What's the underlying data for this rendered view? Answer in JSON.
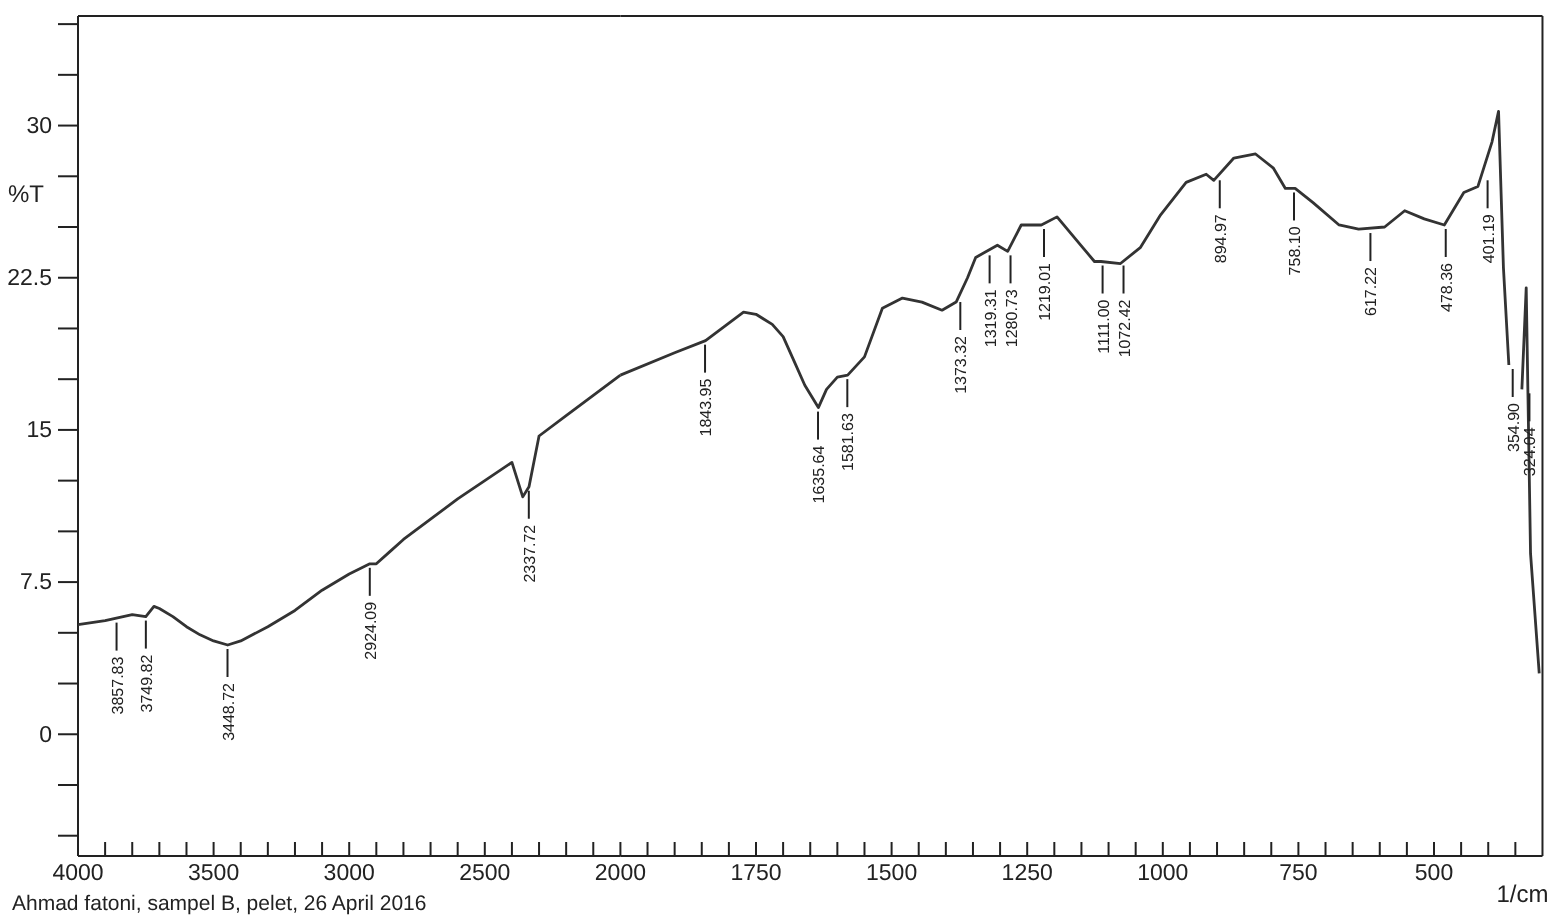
{
  "chart_data": [
    {
      "type": "line",
      "ylabel": "%T",
      "x": [
        4000,
        3900,
        3800,
        3750,
        3720,
        3700,
        3650,
        3600,
        3550,
        3500,
        3448,
        3400,
        3300,
        3200,
        3100,
        3000,
        2924,
        2900,
        2850,
        2800,
        2700,
        2600,
        2500,
        2400,
        2360,
        2337,
        2300,
        2200,
        2100,
        2000
      ],
      "series": [
        {
          "color": "#333333",
          "values": [
            5.4,
            5.6,
            5.9,
            5.8,
            6.3,
            6.2,
            5.8,
            5.3,
            4.9,
            4.6,
            4.4,
            4.6,
            5.3,
            6.1,
            7.1,
            7.9,
            8.4,
            8.4,
            9.0,
            9.6,
            10.6,
            11.6,
            12.5,
            13.4,
            11.7,
            12.2,
            14.7,
            15.7,
            16.7,
            17.7
          ]
        }
      ],
      "xlim": [
        4000,
        2000
      ],
      "xticks": [
        4000,
        {
          "value": 3900,
          "label": null
        },
        {
          "value": 3800,
          "label": null
        },
        {
          "value": 3700,
          "label": null
        },
        {
          "value": 3600,
          "label": null
        },
        3500,
        {
          "value": 3400,
          "label": null
        },
        {
          "value": 3300,
          "label": null
        },
        {
          "value": 3200,
          "label": null
        },
        {
          "value": 3100,
          "label": null
        },
        3000,
        {
          "value": 2900,
          "label": null
        },
        {
          "value": 2800,
          "label": null
        },
        {
          "value": 2700,
          "label": null
        },
        {
          "value": 2600,
          "label": null
        },
        2500,
        {
          "value": 2400,
          "label": null
        },
        {
          "value": 2300,
          "label": null
        },
        {
          "value": 2200,
          "label": null
        },
        {
          "value": 2100,
          "label": null
        },
        2000
      ],
      "ylim": [
        -6,
        35.4
      ],
      "yticks": [
        {
          "value": -5,
          "label": null
        },
        {
          "value": -2.5,
          "label": null
        },
        0,
        {
          "value": 2.5,
          "label": null
        },
        {
          "value": 5,
          "label": null
        },
        7.5,
        {
          "value": 10,
          "label": null
        },
        {
          "value": 12.5,
          "label": null
        },
        15,
        {
          "value": 17.5,
          "label": null
        },
        {
          "value": 20,
          "label": null
        },
        22.5,
        {
          "value": 25,
          "label": null
        },
        {
          "value": 27.5,
          "label": null
        },
        30,
        {
          "value": 32.5,
          "label": null
        },
        {
          "value": 35,
          "label": null
        }
      ],
      "grid": false,
      "marker": "none",
      "line_style": "solid",
      "annotations": [
        "Ahmad fatoni, sampel B,  pelet,  26 April 2016",
        {
          "text": "3857.83",
          "x": 3857.83,
          "y": 5.7
        },
        {
          "text": "3749.82",
          "x": 3749.82,
          "y": 5.8
        },
        {
          "text": "3448.72",
          "x": 3448.72,
          "y": 4.4
        },
        {
          "text": "2924.09",
          "x": 2924.09,
          "y": 8.4
        },
        {
          "text": "2337.72",
          "x": 2337.72,
          "y": 12.2
        }
      ]
    },
    {
      "type": "line",
      "xlabel": "1/cm",
      "tick_labels": "x",
      "x": [
        2000,
        1900,
        1843,
        1773,
        1750,
        1720,
        1700,
        1680,
        1660,
        1635,
        1620,
        1600,
        1581,
        1550,
        1517,
        1480,
        1444,
        1407,
        1381,
        1360,
        1345,
        1305,
        1286,
        1261,
        1224,
        1195,
        1151,
        1126,
        1114,
        1078,
        1041,
        1004,
        957,
        920,
        906,
        869,
        829,
        796,
        774,
        756,
        723,
        675,
        639,
        591,
        554,
        518,
        481,
        445,
        419,
        393,
        381,
        372,
        362,
        357,
        349,
        338,
        330,
        322,
        306
      ],
      "series": [
        {
          "color": "#333333",
          "values": [
            17.7,
            18.8,
            19.4,
            20.8,
            20.7,
            20.2,
            19.6,
            18.4,
            17.2,
            16.1,
            17.0,
            17.6,
            17.7,
            18.6,
            21.0,
            21.5,
            21.3,
            20.9,
            21.3,
            22.5,
            23.5,
            24.1,
            23.8,
            25.1,
            25.1,
            25.5,
            24.1,
            23.3,
            23.3,
            23.2,
            24.0,
            25.6,
            27.2,
            27.6,
            27.3,
            28.4,
            28.6,
            27.9,
            26.9,
            26.9,
            26.2,
            25.1,
            24.9,
            25.0,
            25.8,
            25.4,
            25.1,
            26.7,
            27.0,
            29.2,
            30.7,
            23.0,
            18.2,
            null,
            null,
            17.0,
            22.0,
            8.9,
            3.0
          ]
        }
      ],
      "xlim": [
        2000,
        300
      ],
      "xticks": [
        {
          "value": 1950,
          "label": null
        },
        {
          "value": 1900,
          "label": null
        },
        {
          "value": 1850,
          "label": null
        },
        {
          "value": 1800,
          "label": null
        },
        1750,
        {
          "value": 1700,
          "label": null
        },
        {
          "value": 1650,
          "label": null
        },
        {
          "value": 1600,
          "label": null
        },
        {
          "value": 1550,
          "label": null
        },
        1500,
        {
          "value": 1450,
          "label": null
        },
        {
          "value": 1400,
          "label": null
        },
        {
          "value": 1350,
          "label": null
        },
        {
          "value": 1300,
          "label": null
        },
        1250,
        {
          "value": 1200,
          "label": null
        },
        {
          "value": 1150,
          "label": null
        },
        {
          "value": 1100,
          "label": null
        },
        {
          "value": 1050,
          "label": null
        },
        1000,
        {
          "value": 950,
          "label": null
        },
        {
          "value": 900,
          "label": null
        },
        {
          "value": 850,
          "label": null
        },
        {
          "value": 800,
          "label": null
        },
        750,
        {
          "value": 700,
          "label": null
        },
        {
          "value": 650,
          "label": null
        },
        {
          "value": 600,
          "label": null
        },
        {
          "value": 550,
          "label": null
        },
        500,
        {
          "value": 450,
          "label": null
        },
        {
          "value": 400,
          "label": null
        },
        {
          "value": 350,
          "label": null
        }
      ],
      "ylim": [
        -6,
        35.4
      ],
      "grid": false,
      "marker": "none",
      "line_style": "solid",
      "annotations": [
        {
          "text": "1843.95",
          "x": 1843.95,
          "y": 19.4
        },
        {
          "text": "1635.64",
          "x": 1635.64,
          "y": 16.1
        },
        {
          "text": "1581.63",
          "x": 1581.63,
          "y": 17.7
        },
        {
          "text": "1373.32",
          "x": 1373.32,
          "y": 21.5
        },
        {
          "text": "1319.31",
          "x": 1319.31,
          "y": 23.8
        },
        {
          "text": "1280.73",
          "x": 1280.73,
          "y": 23.8
        },
        {
          "text": "1219.01",
          "x": 1219.01,
          "y": 25.1
        },
        {
          "text": "1111.00",
          "x": 1111.0,
          "y": 23.3
        },
        {
          "text": "1072.42",
          "x": 1072.42,
          "y": 23.3
        },
        {
          "text": "894.97",
          "x": 894.97,
          "y": 27.5
        },
        {
          "text": "758.10",
          "x": 758.1,
          "y": 26.9
        },
        {
          "text": "617.22",
          "x": 617.22,
          "y": 24.9
        },
        {
          "text": "478.36",
          "x": 478.36,
          "y": 25.1
        },
        {
          "text": "401.19",
          "x": 401.19,
          "y": 27.5
        },
        {
          "text": "354.90",
          "x": 354.9,
          "y": 18.2
        },
        {
          "text": "324.04",
          "x": 324.04,
          "y": 17.0
        }
      ]
    }
  ]
}
